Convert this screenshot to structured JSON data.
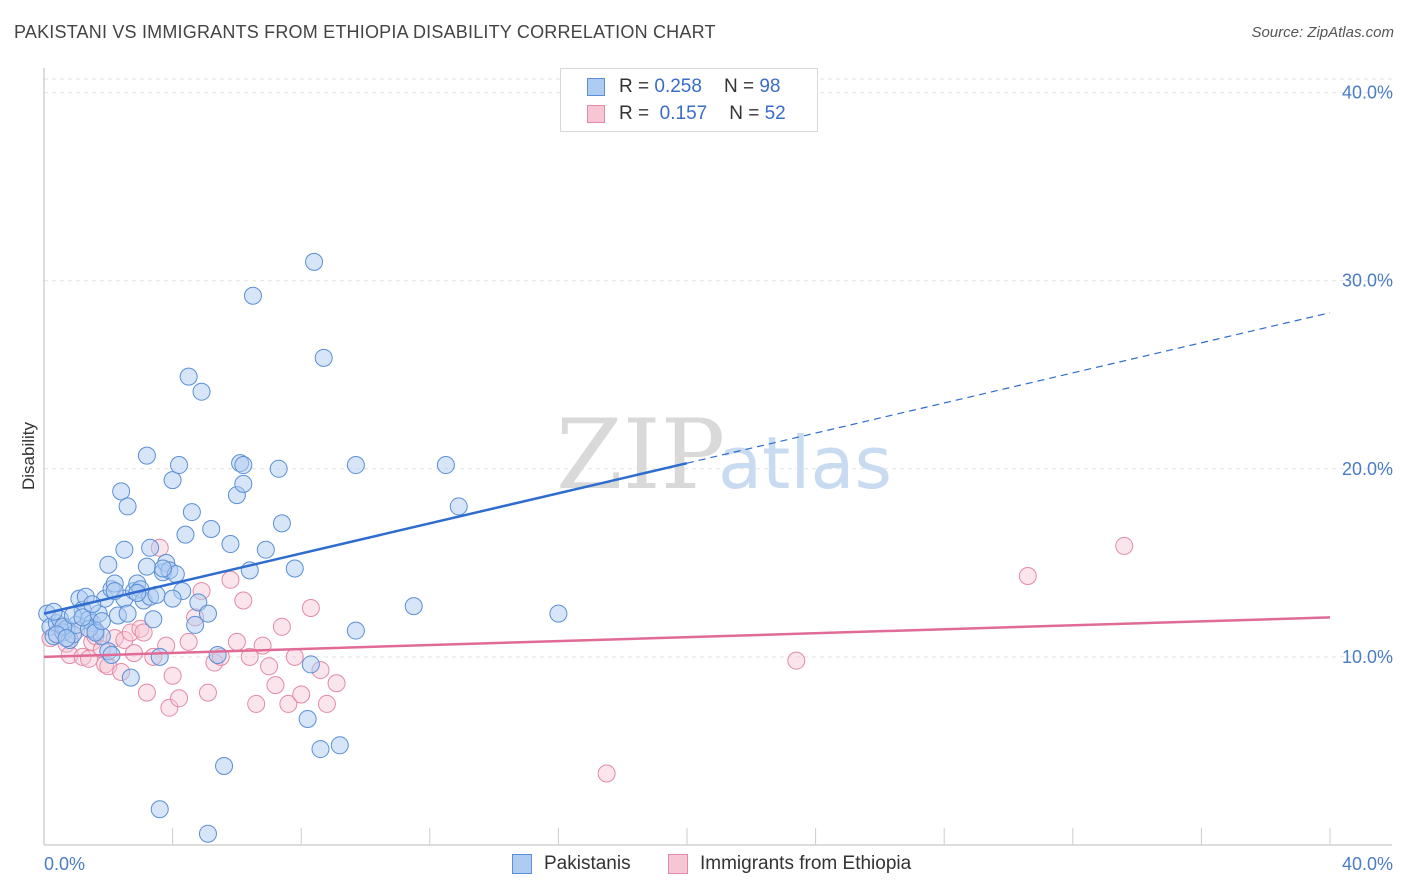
{
  "title": "PAKISTANI VS IMMIGRANTS FROM ETHIOPIA DISABILITY CORRELATION CHART",
  "source": "Source: ZipAtlas.com",
  "legend_top": {
    "rows": [
      {
        "r_label": "R =",
        "r_value": "0.258",
        "n_label": "N =",
        "n_value": "98"
      },
      {
        "r_label": "R =",
        "r_value": "0.157",
        "n_label": "N =",
        "n_value": "52"
      }
    ]
  },
  "legend_bottom": {
    "items": [
      "Pakistanis",
      "Immigrants from Ethiopia"
    ]
  },
  "watermark": {
    "zip": "ZIP",
    "atlas": "atlas"
  },
  "colors": {
    "pakistanis_fill": "#aecbf2",
    "pakistanis_stroke": "#5b8fd6",
    "pakistanis_line": "#2e6ccf",
    "ethiopia_fill": "#f7c6d4",
    "ethiopia_stroke": "#e38aa6",
    "ethiopia_line": "#e06b96",
    "tick_label": "#4a7cc8"
  },
  "chart_data": {
    "type": "scatter",
    "title": "PAKISTANI VS IMMIGRANTS FROM ETHIOPIA DISABILITY CORRELATION CHART",
    "xlabel": "",
    "ylabel": "Disability",
    "xlim": [
      0,
      40
    ],
    "ylim": [
      0,
      42
    ],
    "x_tick_labels": [
      "0.0%",
      "40.0%"
    ],
    "y_ticks": [
      10,
      20,
      30,
      40
    ],
    "y_tick_labels": [
      "10.0%",
      "20.0%",
      "30.0%",
      "40.0%"
    ],
    "grid": true,
    "legend_position": "top-center",
    "series": [
      {
        "name": "Pakistanis",
        "R": 0.258,
        "N": 98,
        "trend": {
          "x0": 0,
          "y0": 12.3,
          "x1": 40,
          "y1": 28.3,
          "solid_until_x": 20
        },
        "points": [
          [
            0.1,
            12.3
          ],
          [
            0.2,
            11.6
          ],
          [
            0.3,
            11.1
          ],
          [
            0.4,
            11.8
          ],
          [
            0.5,
            12.0
          ],
          [
            0.6,
            11.3
          ],
          [
            0.7,
            11.5
          ],
          [
            0.8,
            10.9
          ],
          [
            0.9,
            11.2
          ],
          [
            1.0,
            11.7
          ],
          [
            1.1,
            13.1
          ],
          [
            1.2,
            12.5
          ],
          [
            1.3,
            13.2
          ],
          [
            1.4,
            12.0
          ],
          [
            1.5,
            11.8
          ],
          [
            1.6,
            11.4
          ],
          [
            1.7,
            12.3
          ],
          [
            1.8,
            11.1
          ],
          [
            1.9,
            13.1
          ],
          [
            2.0,
            10.3
          ],
          [
            2.1,
            10.1
          ],
          [
            2.0,
            14.9
          ],
          [
            2.1,
            13.6
          ],
          [
            2.2,
            13.9
          ],
          [
            2.3,
            12.2
          ],
          [
            2.4,
            18.8
          ],
          [
            2.5,
            15.7
          ],
          [
            2.5,
            13.1
          ],
          [
            2.6,
            18.0
          ],
          [
            2.7,
            8.9
          ],
          [
            2.8,
            13.5
          ],
          [
            2.9,
            13.9
          ],
          [
            3.0,
            13.6
          ],
          [
            3.1,
            13.0
          ],
          [
            3.2,
            20.7
          ],
          [
            3.3,
            15.8
          ],
          [
            3.3,
            13.2
          ],
          [
            3.4,
            12.0
          ],
          [
            3.5,
            13.3
          ],
          [
            3.6,
            10.0
          ],
          [
            3.7,
            14.5
          ],
          [
            3.8,
            15.0
          ],
          [
            3.9,
            14.6
          ],
          [
            4.0,
            19.4
          ],
          [
            4.1,
            14.4
          ],
          [
            4.2,
            20.2
          ],
          [
            4.3,
            13.5
          ],
          [
            4.4,
            16.5
          ],
          [
            4.5,
            24.9
          ],
          [
            4.6,
            17.7
          ],
          [
            4.7,
            11.7
          ],
          [
            4.8,
            12.9
          ],
          [
            4.9,
            24.1
          ],
          [
            5.1,
            12.3
          ],
          [
            5.2,
            16.8
          ],
          [
            5.4,
            10.1
          ],
          [
            5.6,
            4.2
          ],
          [
            5.8,
            16.0
          ],
          [
            6.0,
            18.6
          ],
          [
            6.1,
            20.3
          ],
          [
            6.2,
            20.2
          ],
          [
            6.2,
            19.2
          ],
          [
            6.4,
            14.6
          ],
          [
            6.5,
            29.2
          ],
          [
            6.9,
            15.7
          ],
          [
            7.3,
            20.0
          ],
          [
            7.4,
            17.1
          ],
          [
            7.8,
            14.7
          ],
          [
            8.2,
            6.7
          ],
          [
            8.3,
            9.6
          ],
          [
            8.4,
            31.0
          ],
          [
            8.6,
            5.1
          ],
          [
            8.7,
            25.9
          ],
          [
            9.2,
            5.3
          ],
          [
            9.7,
            20.2
          ],
          [
            9.7,
            11.4
          ],
          [
            11.5,
            12.7
          ],
          [
            12.5,
            20.2
          ],
          [
            12.9,
            18.0
          ],
          [
            16.0,
            12.3
          ],
          [
            3.6,
            1.9
          ],
          [
            5.1,
            0.6
          ],
          [
            0.6,
            11.6
          ],
          [
            1.4,
            11.5
          ],
          [
            0.9,
            12.2
          ],
          [
            1.6,
            11.3
          ],
          [
            2.9,
            13.4
          ],
          [
            3.7,
            14.7
          ],
          [
            0.4,
            11.2
          ],
          [
            1.2,
            12.1
          ],
          [
            0.7,
            11.0
          ],
          [
            1.5,
            12.8
          ],
          [
            2.2,
            13.5
          ],
          [
            3.2,
            14.8
          ],
          [
            4.0,
            13.1
          ],
          [
            0.3,
            12.4
          ],
          [
            1.8,
            11.9
          ],
          [
            2.6,
            12.3
          ]
        ]
      },
      {
        "name": "Immigrants from Ethiopia",
        "R": 0.157,
        "N": 52,
        "trend": {
          "x0": 0,
          "y0": 10.0,
          "x1": 40,
          "y1": 12.1
        },
        "points": [
          [
            0.2,
            11.0
          ],
          [
            0.5,
            11.5
          ],
          [
            0.7,
            10.7
          ],
          [
            0.8,
            10.1
          ],
          [
            1.0,
            11.4
          ],
          [
            1.2,
            10.0
          ],
          [
            1.4,
            9.9
          ],
          [
            1.5,
            10.8
          ],
          [
            1.6,
            11.1
          ],
          [
            1.8,
            10.4
          ],
          [
            1.9,
            9.6
          ],
          [
            2.0,
            9.5
          ],
          [
            2.2,
            11.0
          ],
          [
            2.4,
            9.2
          ],
          [
            2.5,
            10.9
          ],
          [
            2.7,
            11.3
          ],
          [
            2.8,
            10.2
          ],
          [
            3.0,
            11.5
          ],
          [
            3.1,
            11.3
          ],
          [
            3.2,
            8.1
          ],
          [
            3.4,
            10.0
          ],
          [
            3.6,
            15.8
          ],
          [
            3.8,
            10.6
          ],
          [
            3.9,
            7.3
          ],
          [
            4.0,
            9.0
          ],
          [
            4.2,
            7.8
          ],
          [
            4.5,
            10.8
          ],
          [
            4.7,
            12.1
          ],
          [
            4.9,
            13.5
          ],
          [
            5.1,
            8.1
          ],
          [
            5.3,
            9.7
          ],
          [
            5.5,
            10.0
          ],
          [
            5.8,
            14.1
          ],
          [
            6.0,
            10.8
          ],
          [
            6.2,
            13.0
          ],
          [
            6.4,
            10.0
          ],
          [
            6.6,
            7.5
          ],
          [
            6.8,
            10.6
          ],
          [
            7.0,
            9.5
          ],
          [
            7.2,
            8.5
          ],
          [
            7.4,
            11.6
          ],
          [
            7.6,
            7.5
          ],
          [
            7.8,
            10.0
          ],
          [
            8.0,
            8.0
          ],
          [
            8.3,
            12.6
          ],
          [
            8.6,
            9.3
          ],
          [
            8.8,
            7.5
          ],
          [
            9.1,
            8.6
          ],
          [
            17.5,
            3.8
          ],
          [
            23.4,
            9.8
          ],
          [
            30.6,
            14.3
          ],
          [
            33.6,
            15.9
          ]
        ]
      }
    ]
  }
}
